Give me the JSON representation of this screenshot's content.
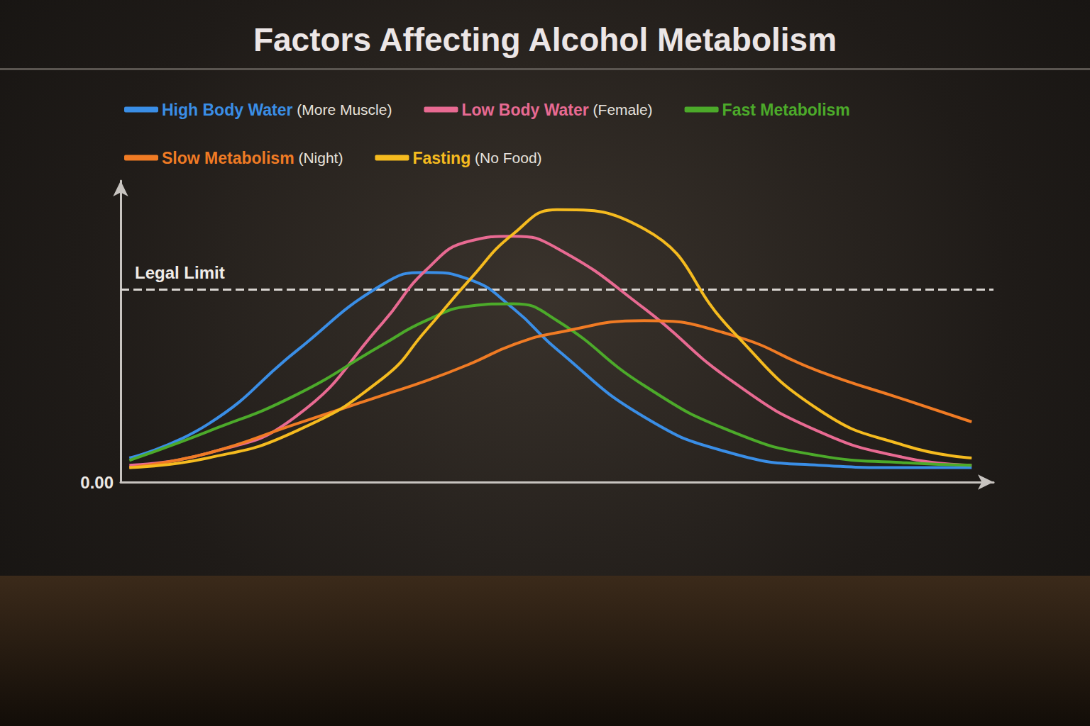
{
  "chart_data": {
    "type": "line",
    "title": "Factors Affecting Alcohol Metabolism",
    "x": [
      0.1,
      1,
      2,
      3,
      3.5,
      4,
      4.5,
      5,
      6,
      7,
      8,
      9,
      9.75
    ],
    "xlim": [
      0,
      10
    ],
    "ylim": [
      0,
      0.125
    ],
    "yticks": [
      {
        "value": 0,
        "label": "0.00"
      }
    ],
    "tick_labels": "y",
    "grid": false,
    "legend": "top",
    "annotations": [
      {
        "text": "Legal Limit",
        "y": 0.08
      }
    ],
    "series": [
      {
        "name": "High Body Water (More Muscle)",
        "color": "#3a8ee6",
        "values": [
          0.01,
          0.024,
          0.054,
          0.082,
          0.087,
          0.084,
          0.072,
          0.055,
          0.027,
          0.012,
          0.007,
          0.006,
          0.006
        ]
      },
      {
        "name": "Low Body Water (Female)",
        "color": "#e86a92",
        "values": [
          0.007,
          0.012,
          0.027,
          0.066,
          0.088,
          0.1,
          0.102,
          0.097,
          0.072,
          0.042,
          0.021,
          0.01,
          0.007
        ]
      },
      {
        "name": "Fast Metabolism",
        "color": "#4caa2a",
        "values": [
          0.009,
          0.021,
          0.036,
          0.057,
          0.067,
          0.073,
          0.074,
          0.067,
          0.04,
          0.021,
          0.011,
          0.008,
          0.007
        ]
      },
      {
        "name": "Slow Metabolism (Night)",
        "color": "#f07b24",
        "values": [
          0.006,
          0.012,
          0.024,
          0.036,
          0.042,
          0.049,
          0.057,
          0.062,
          0.067,
          0.061,
          0.046,
          0.034,
          0.025
        ]
      },
      {
        "name": "Fasting (No Food)",
        "color": "#f5bb1f",
        "values": [
          0.006,
          0.01,
          0.021,
          0.043,
          0.063,
          0.084,
          0.103,
          0.113,
          0.105,
          0.063,
          0.03,
          0.015,
          0.01
        ]
      }
    ]
  }
}
